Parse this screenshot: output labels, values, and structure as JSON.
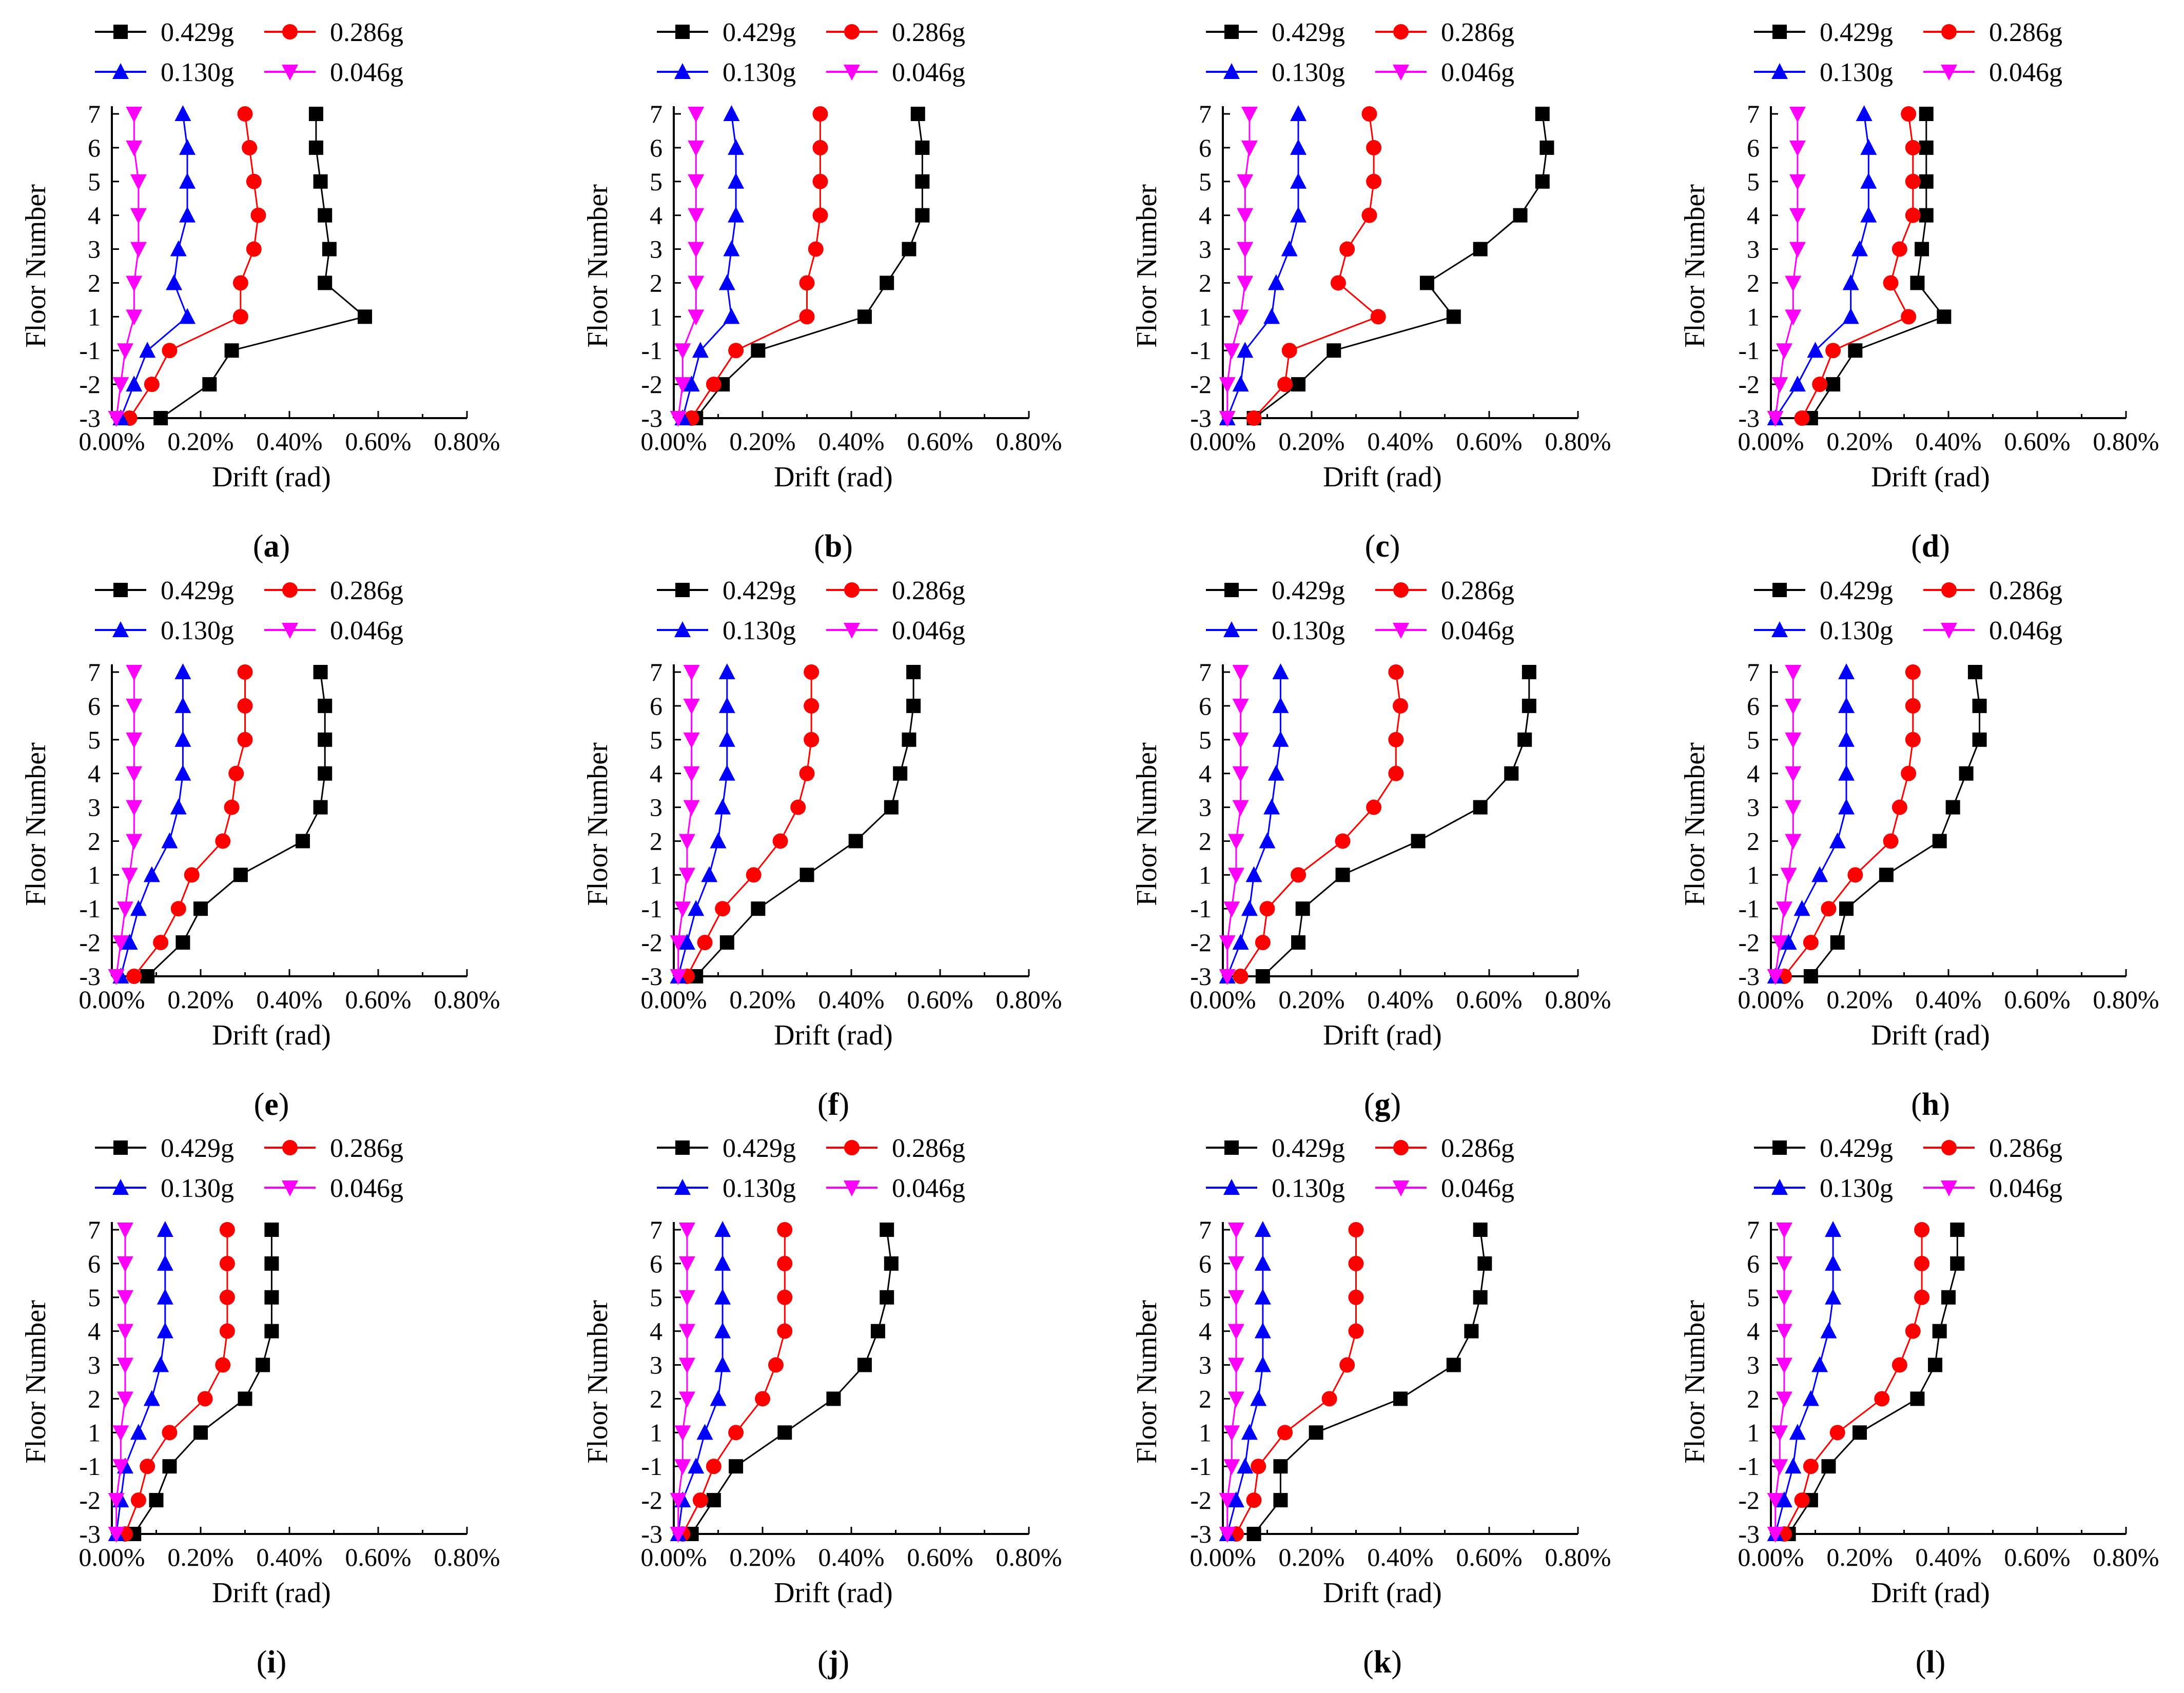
{
  "chart_data": {
    "type": "line",
    "panel_count": 12,
    "xlabel": "Drift (rad)",
    "ylabel": "Floor Number",
    "x_ticks": [
      "0.00%",
      "0.20%",
      "0.40%",
      "0.60%",
      "0.80%"
    ],
    "xlim": [
      0,
      0.8
    ],
    "y_categories": [
      "-3",
      "-2",
      "-1",
      "1",
      "2",
      "3",
      "4",
      "5",
      "6",
      "7"
    ],
    "legend": [
      {
        "name": "0.429g",
        "color": "#000000",
        "marker": "square"
      },
      {
        "name": "0.286g",
        "color": "#ff0000",
        "marker": "circle"
      },
      {
        "name": "0.130g",
        "color": "#0000ff",
        "marker": "triangle-up"
      },
      {
        "name": "0.046g",
        "color": "#ff00ff",
        "marker": "triangle-down"
      }
    ],
    "panels": [
      {
        "label": "(a)",
        "series": [
          {
            "name": "0.429g",
            "values": [
              0.11,
              0.22,
              0.27,
              0.57,
              0.48,
              0.49,
              0.48,
              0.47,
              0.46,
              0.46
            ]
          },
          {
            "name": "0.286g",
            "values": [
              0.04,
              0.09,
              0.13,
              0.29,
              0.29,
              0.32,
              0.33,
              0.32,
              0.31,
              0.3
            ]
          },
          {
            "name": "0.130g",
            "values": [
              0.02,
              0.05,
              0.08,
              0.17,
              0.14,
              0.15,
              0.17,
              0.17,
              0.17,
              0.16
            ]
          },
          {
            "name": "0.046g",
            "values": [
              0.01,
              0.02,
              0.03,
              0.05,
              0.05,
              0.06,
              0.06,
              0.06,
              0.05,
              0.05
            ]
          }
        ]
      },
      {
        "label": "(b)",
        "series": [
          {
            "name": "0.429g",
            "values": [
              0.05,
              0.11,
              0.19,
              0.43,
              0.48,
              0.53,
              0.56,
              0.56,
              0.56,
              0.55
            ]
          },
          {
            "name": "0.286g",
            "values": [
              0.04,
              0.09,
              0.14,
              0.3,
              0.3,
              0.32,
              0.33,
              0.33,
              0.33,
              0.33
            ]
          },
          {
            "name": "0.130g",
            "values": [
              0.02,
              0.04,
              0.06,
              0.13,
              0.12,
              0.13,
              0.14,
              0.14,
              0.14,
              0.13
            ]
          },
          {
            "name": "0.046g",
            "values": [
              0.01,
              0.02,
              0.02,
              0.05,
              0.05,
              0.05,
              0.05,
              0.05,
              0.05,
              0.05
            ]
          }
        ]
      },
      {
        "label": "(c)",
        "series": [
          {
            "name": "0.429g",
            "values": [
              0.07,
              0.17,
              0.25,
              0.52,
              0.46,
              0.58,
              0.67,
              0.72,
              0.73,
              0.72
            ]
          },
          {
            "name": "0.286g",
            "values": [
              0.07,
              0.14,
              0.15,
              0.35,
              0.26,
              0.28,
              0.33,
              0.34,
              0.34,
              0.33
            ]
          },
          {
            "name": "0.130g",
            "values": [
              0.01,
              0.04,
              0.05,
              0.11,
              0.12,
              0.15,
              0.17,
              0.17,
              0.17,
              0.17
            ]
          },
          {
            "name": "0.046g",
            "values": [
              0.01,
              0.01,
              0.02,
              0.04,
              0.05,
              0.05,
              0.05,
              0.05,
              0.06,
              0.06
            ]
          }
        ]
      },
      {
        "label": "(d)",
        "series": [
          {
            "name": "0.429g",
            "values": [
              0.09,
              0.14,
              0.19,
              0.39,
              0.33,
              0.34,
              0.35,
              0.35,
              0.35,
              0.35
            ]
          },
          {
            "name": "0.286g",
            "values": [
              0.07,
              0.11,
              0.14,
              0.31,
              0.27,
              0.29,
              0.32,
              0.32,
              0.32,
              0.31
            ]
          },
          {
            "name": "0.130g",
            "values": [
              0.01,
              0.06,
              0.1,
              0.18,
              0.18,
              0.2,
              0.22,
              0.22,
              0.22,
              0.21
            ]
          },
          {
            "name": "0.046g",
            "values": [
              0.01,
              0.02,
              0.03,
              0.05,
              0.05,
              0.06,
              0.06,
              0.06,
              0.06,
              0.06
            ]
          }
        ]
      },
      {
        "label": "(e)",
        "series": [
          {
            "name": "0.429g",
            "values": [
              0.08,
              0.16,
              0.2,
              0.29,
              0.43,
              0.47,
              0.48,
              0.48,
              0.48,
              0.47
            ]
          },
          {
            "name": "0.286g",
            "values": [
              0.05,
              0.11,
              0.15,
              0.18,
              0.25,
              0.27,
              0.28,
              0.3,
              0.3,
              0.3
            ]
          },
          {
            "name": "0.130g",
            "values": [
              0.02,
              0.04,
              0.06,
              0.09,
              0.13,
              0.15,
              0.16,
              0.16,
              0.16,
              0.16
            ]
          },
          {
            "name": "0.046g",
            "values": [
              0.01,
              0.02,
              0.03,
              0.04,
              0.05,
              0.05,
              0.05,
              0.05,
              0.05,
              0.05
            ]
          }
        ]
      },
      {
        "label": "(f)",
        "series": [
          {
            "name": "0.429g",
            "values": [
              0.05,
              0.12,
              0.19,
              0.3,
              0.41,
              0.49,
              0.51,
              0.53,
              0.54,
              0.54
            ]
          },
          {
            "name": "0.286g",
            "values": [
              0.03,
              0.07,
              0.11,
              0.18,
              0.24,
              0.28,
              0.3,
              0.31,
              0.31,
              0.31
            ]
          },
          {
            "name": "0.130g",
            "values": [
              0.01,
              0.03,
              0.05,
              0.08,
              0.1,
              0.11,
              0.12,
              0.12,
              0.12,
              0.12
            ]
          },
          {
            "name": "0.046g",
            "values": [
              0.01,
              0.01,
              0.02,
              0.03,
              0.03,
              0.04,
              0.04,
              0.04,
              0.04,
              0.04
            ]
          }
        ]
      },
      {
        "label": "(g)",
        "series": [
          {
            "name": "0.429g",
            "values": [
              0.09,
              0.17,
              0.18,
              0.27,
              0.44,
              0.58,
              0.65,
              0.68,
              0.69,
              0.69
            ]
          },
          {
            "name": "0.286g",
            "values": [
              0.04,
              0.09,
              0.1,
              0.17,
              0.27,
              0.34,
              0.39,
              0.39,
              0.4,
              0.39
            ]
          },
          {
            "name": "0.130g",
            "values": [
              0.01,
              0.04,
              0.06,
              0.07,
              0.1,
              0.11,
              0.12,
              0.13,
              0.13,
              0.13
            ]
          },
          {
            "name": "0.046g",
            "values": [
              0.01,
              0.01,
              0.02,
              0.03,
              0.03,
              0.04,
              0.04,
              0.04,
              0.04,
              0.04
            ]
          }
        ]
      },
      {
        "label": "(h)",
        "series": [
          {
            "name": "0.429g",
            "values": [
              0.09,
              0.15,
              0.17,
              0.26,
              0.38,
              0.41,
              0.44,
              0.47,
              0.47,
              0.46
            ]
          },
          {
            "name": "0.286g",
            "values": [
              0.03,
              0.09,
              0.13,
              0.19,
              0.27,
              0.29,
              0.31,
              0.32,
              0.32,
              0.32
            ]
          },
          {
            "name": "0.130g",
            "values": [
              0.01,
              0.04,
              0.07,
              0.11,
              0.15,
              0.17,
              0.17,
              0.17,
              0.17,
              0.17
            ]
          },
          {
            "name": "0.046g",
            "values": [
              0.01,
              0.02,
              0.03,
              0.04,
              0.05,
              0.05,
              0.05,
              0.05,
              0.05,
              0.05
            ]
          }
        ]
      },
      {
        "label": "(i)",
        "series": [
          {
            "name": "0.429g",
            "values": [
              0.05,
              0.1,
              0.13,
              0.2,
              0.3,
              0.34,
              0.36,
              0.36,
              0.36,
              0.36
            ]
          },
          {
            "name": "0.286g",
            "values": [
              0.03,
              0.06,
              0.08,
              0.13,
              0.21,
              0.25,
              0.26,
              0.26,
              0.26,
              0.26
            ]
          },
          {
            "name": "0.130g",
            "values": [
              0.01,
              0.02,
              0.03,
              0.06,
              0.09,
              0.11,
              0.12,
              0.12,
              0.12,
              0.12
            ]
          },
          {
            "name": "0.046g",
            "values": [
              0.01,
              0.01,
              0.02,
              0.02,
              0.03,
              0.03,
              0.03,
              0.03,
              0.03,
              0.03
            ]
          }
        ]
      },
      {
        "label": "(j)",
        "series": [
          {
            "name": "0.429g",
            "values": [
              0.04,
              0.09,
              0.14,
              0.25,
              0.36,
              0.43,
              0.46,
              0.48,
              0.49,
              0.48
            ]
          },
          {
            "name": "0.286g",
            "values": [
              0.02,
              0.06,
              0.09,
              0.14,
              0.2,
              0.23,
              0.25,
              0.25,
              0.25,
              0.25
            ]
          },
          {
            "name": "0.130g",
            "values": [
              0.01,
              0.02,
              0.05,
              0.07,
              0.1,
              0.11,
              0.11,
              0.11,
              0.11,
              0.11
            ]
          },
          {
            "name": "0.046g",
            "values": [
              0.01,
              0.01,
              0.02,
              0.02,
              0.03,
              0.03,
              0.03,
              0.03,
              0.03,
              0.03
            ]
          }
        ]
      },
      {
        "label": "(k)",
        "series": [
          {
            "name": "0.429g",
            "values": [
              0.07,
              0.13,
              0.13,
              0.21,
              0.4,
              0.52,
              0.56,
              0.58,
              0.59,
              0.58
            ]
          },
          {
            "name": "0.286g",
            "values": [
              0.03,
              0.07,
              0.08,
              0.14,
              0.24,
              0.28,
              0.3,
              0.3,
              0.3,
              0.3
            ]
          },
          {
            "name": "0.130g",
            "values": [
              0.01,
              0.03,
              0.05,
              0.06,
              0.08,
              0.09,
              0.09,
              0.09,
              0.09,
              0.09
            ]
          },
          {
            "name": "0.046g",
            "values": [
              0.01,
              0.01,
              0.02,
              0.02,
              0.03,
              0.03,
              0.03,
              0.03,
              0.03,
              0.03
            ]
          }
        ]
      },
      {
        "label": "(l)",
        "series": [
          {
            "name": "0.429g",
            "values": [
              0.04,
              0.09,
              0.13,
              0.2,
              0.33,
              0.37,
              0.38,
              0.4,
              0.42,
              0.42
            ]
          },
          {
            "name": "0.286g",
            "values": [
              0.03,
              0.07,
              0.09,
              0.15,
              0.25,
              0.29,
              0.32,
              0.34,
              0.34,
              0.34
            ]
          },
          {
            "name": "0.130g",
            "values": [
              0.01,
              0.03,
              0.05,
              0.06,
              0.09,
              0.11,
              0.13,
              0.14,
              0.14,
              0.14
            ]
          },
          {
            "name": "0.046g",
            "values": [
              0.01,
              0.01,
              0.02,
              0.02,
              0.03,
              0.03,
              0.03,
              0.03,
              0.03,
              0.03
            ]
          }
        ]
      }
    ]
  }
}
